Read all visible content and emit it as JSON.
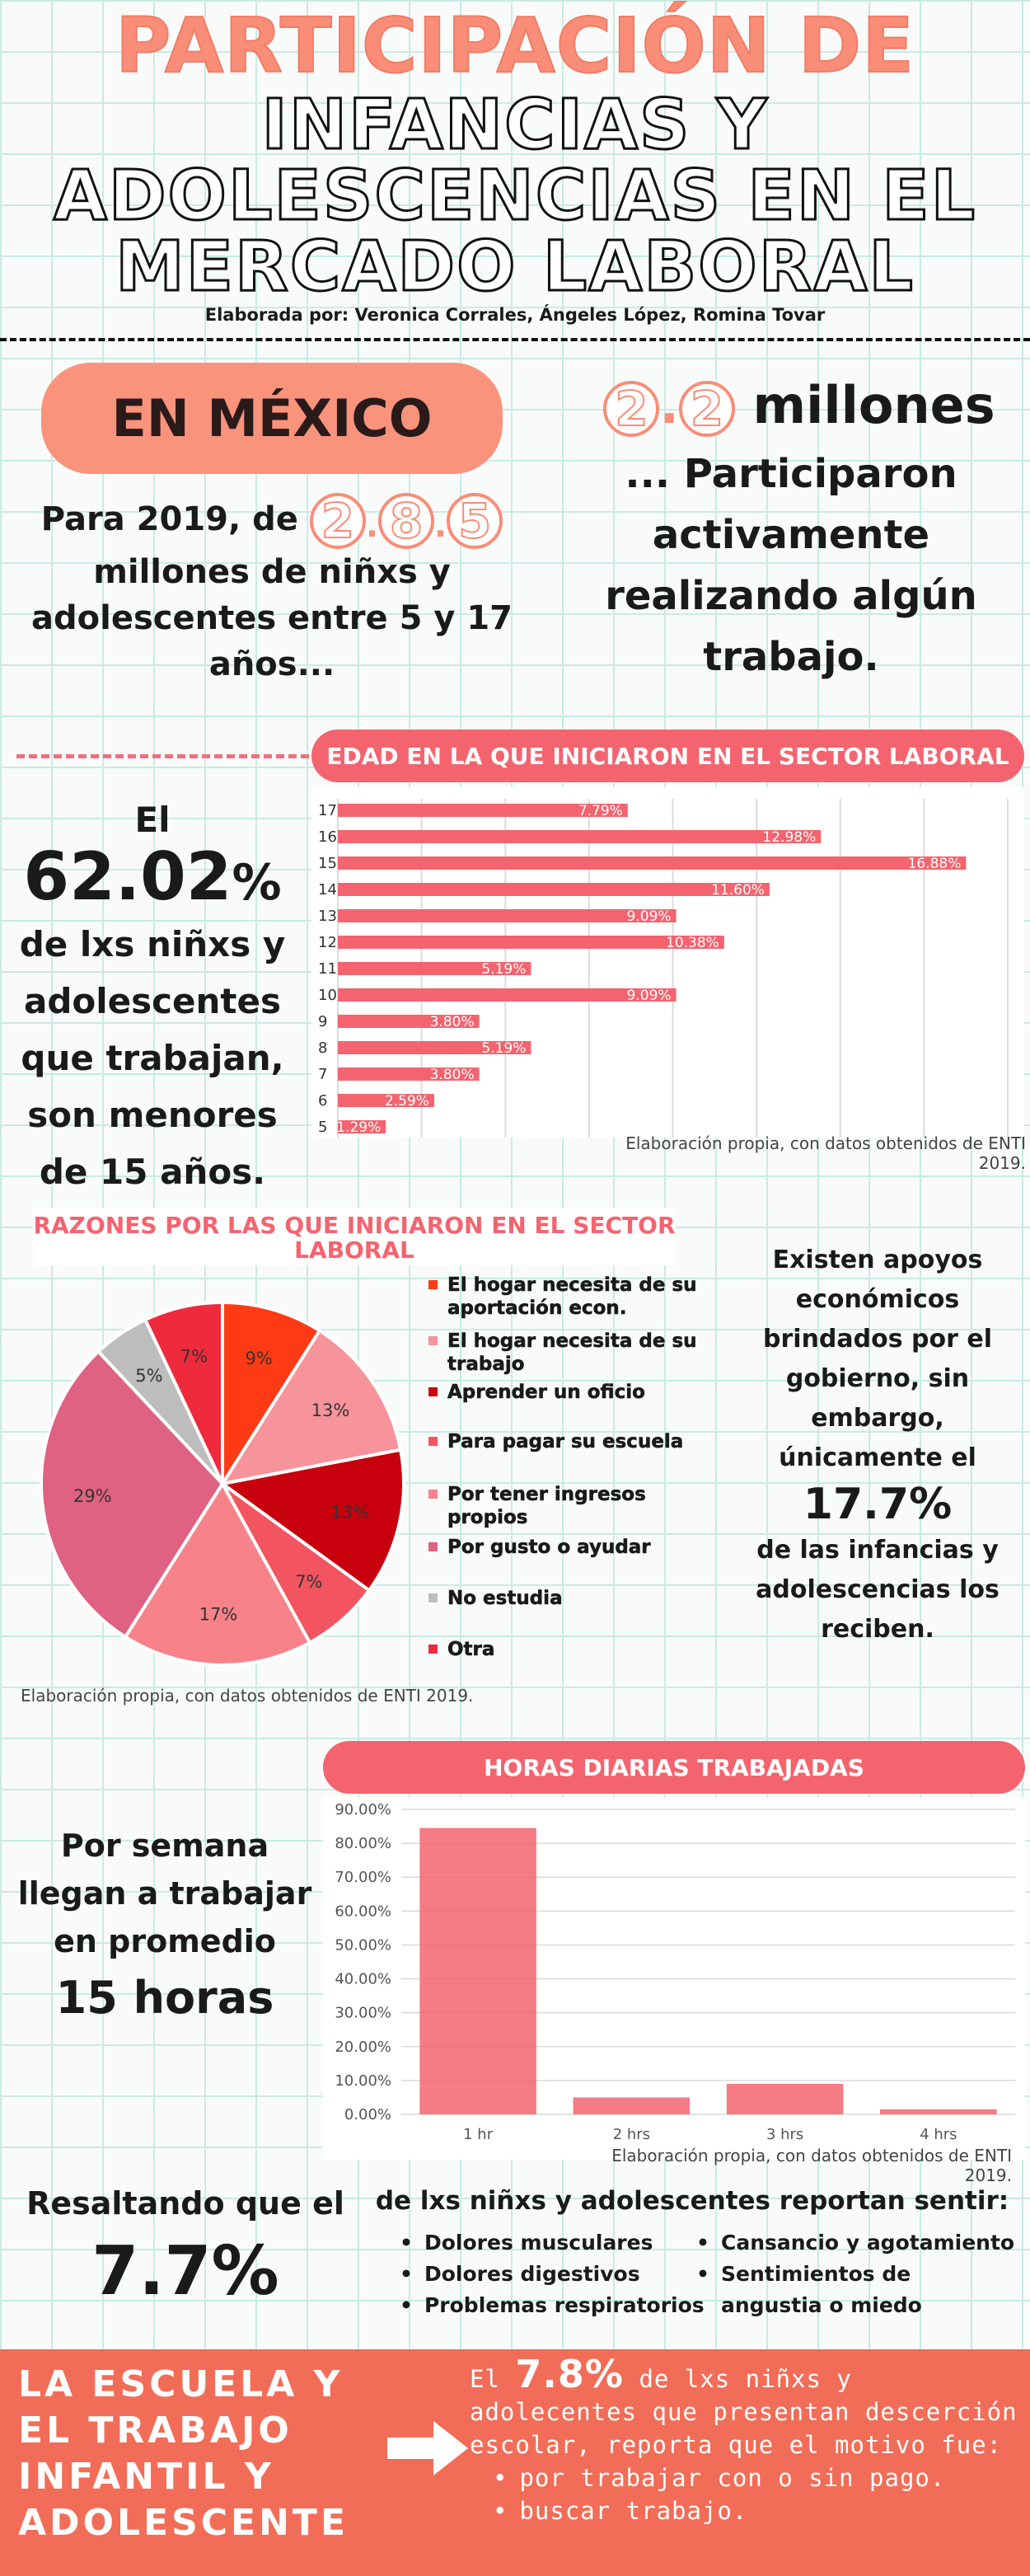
{
  "title": {
    "line1": "PARTICIPACIÓN DE",
    "line2a": "INFANCIAS  Y",
    "line2b": "ADOLESCENCIAS EN EL",
    "line2c": "MERCADO LABORAL",
    "credit": "Elaborada por: Veronica Corrales, Ángeles López, Romina Tovar"
  },
  "mexico": {
    "pill": "EN MÉXICO",
    "left_pre": "Para 2019, de",
    "left_digits": [
      "2",
      "8",
      "5"
    ],
    "left_rest": "millones de niñxs  y adolescentes entre 5 y 17 años...",
    "right_digits": [
      "2",
      "2"
    ],
    "right_unit": "millones",
    "right_rest": "... Participaron activamente realizando algún trabajo."
  },
  "edad": {
    "pill": "EDAD EN LA  QUE  INICIARON EN EL SECTOR LABORAL",
    "stat_prefix": "El",
    "stat_value": "62.02",
    "stat_pct": "%",
    "stat_rest": "de lxs niñxs y adolescentes que trabajan, son menores de 15 años.",
    "caption": "Elaboración propia, con datos obtenidos de ENTI 2019."
  },
  "razones": {
    "title": "RAZONES POR LAS QUE INICIARON EN EL SECTOR LABORAL",
    "caption": "Elaboración propia, con datos obtenidos de ENTI 2019.",
    "apoyos_pre": "Existen apoyos económicos brindados por el gobierno, sin embargo, únicamente el",
    "apoyos_value": "17.7%",
    "apoyos_post": "de las infancias y adolescencias los reciben."
  },
  "horas": {
    "pill": "HORAS DIARIAS TRABAJADAS",
    "caption": "Elaboración propia, con datos obtenidos de ENTI 2019.",
    "semana_pre": "Por semana llegan a trabajar en promedio",
    "semana_value": "15 horas"
  },
  "resaltando": {
    "pre": "Resaltando que el",
    "value": "7.7%",
    "sentir": "de lxs niñxs y adolescentes reportan sentir:",
    "sym_left": [
      "Dolores musculares",
      "Dolores digestivos",
      "Problemas respiratorios"
    ],
    "sym_right": [
      "Cansancio y agotamiento",
      "Sentimientos de angustia o miedo"
    ]
  },
  "footer": {
    "left": "LA ESCUELA Y EL TRABAJO INFANTIL Y ADOLESCENTE",
    "pre": "El",
    "value": "7.8%",
    "text": "de lxs niñxs y adolecentes que presentan descerción escolar, reporta que el motivo fue:",
    "bullets": [
      "por trabajar con o sin pago.",
      "buscar trabajo."
    ]
  },
  "colors": {
    "bar": "#f3646f",
    "accent": "#f98d77",
    "footer": "#f26d57"
  },
  "chart_data": [
    {
      "type": "bar",
      "orientation": "horizontal",
      "title": "EDAD EN LA  QUE  INICIARON EN EL SECTOR LABORAL",
      "categories": [
        "17",
        "16",
        "15",
        "14",
        "13",
        "12",
        "11",
        "10",
        "9",
        "8",
        "7",
        "6",
        "5"
      ],
      "values": [
        7.79,
        12.98,
        16.88,
        11.6,
        9.09,
        10.38,
        5.19,
        9.09,
        3.8,
        5.19,
        3.8,
        2.59,
        1.29
      ],
      "labels": [
        "7.79%",
        "12.98%",
        "16.88%",
        "11.60%",
        "9.09%",
        "10.38%",
        "5.19%",
        "9.09%",
        "3.80%",
        "5.19%",
        "3.80%",
        "2.59%",
        "1.29%"
      ],
      "xlim": [
        0,
        18
      ],
      "grid": true
    },
    {
      "type": "pie",
      "title": "RAZONES POR LAS QUE INICIARON EN EL SECTOR LABORAL",
      "categories": [
        "El hogar necesita de su aportación econ.",
        "El hogar necesita de su trabajo",
        "Aprender un oficio",
        "Para pagar su escuela",
        "Por tener ingresos propios",
        "Por gusto o ayudar",
        "No estudia",
        "Otra"
      ],
      "values": [
        9,
        13,
        13,
        7,
        17,
        29,
        5,
        7
      ],
      "labels": [
        "9%",
        "13%",
        "13%",
        "7%",
        "17%",
        "29%",
        "5%",
        "7%"
      ],
      "colors": [
        "#ff3a14",
        "#f7939b",
        "#c8000d",
        "#f35560",
        "#f8828a",
        "#df6282",
        "#bdbdbd",
        "#ee2a3c"
      ],
      "legend": "right"
    },
    {
      "type": "bar",
      "title": "HORAS DIARIAS TRABAJADAS",
      "categories": [
        "1 hr",
        "2 hrs",
        "3 hrs",
        "4 hrs"
      ],
      "values": [
        84.5,
        5.0,
        9.0,
        1.5
      ],
      "yticks": [
        "0.00%",
        "10.00%",
        "20.00%",
        "30.00%",
        "40.00%",
        "50.00%",
        "60.00%",
        "70.00%",
        "80.00%",
        "90.00%"
      ],
      "ylim": [
        0,
        90
      ],
      "grid": true
    }
  ]
}
